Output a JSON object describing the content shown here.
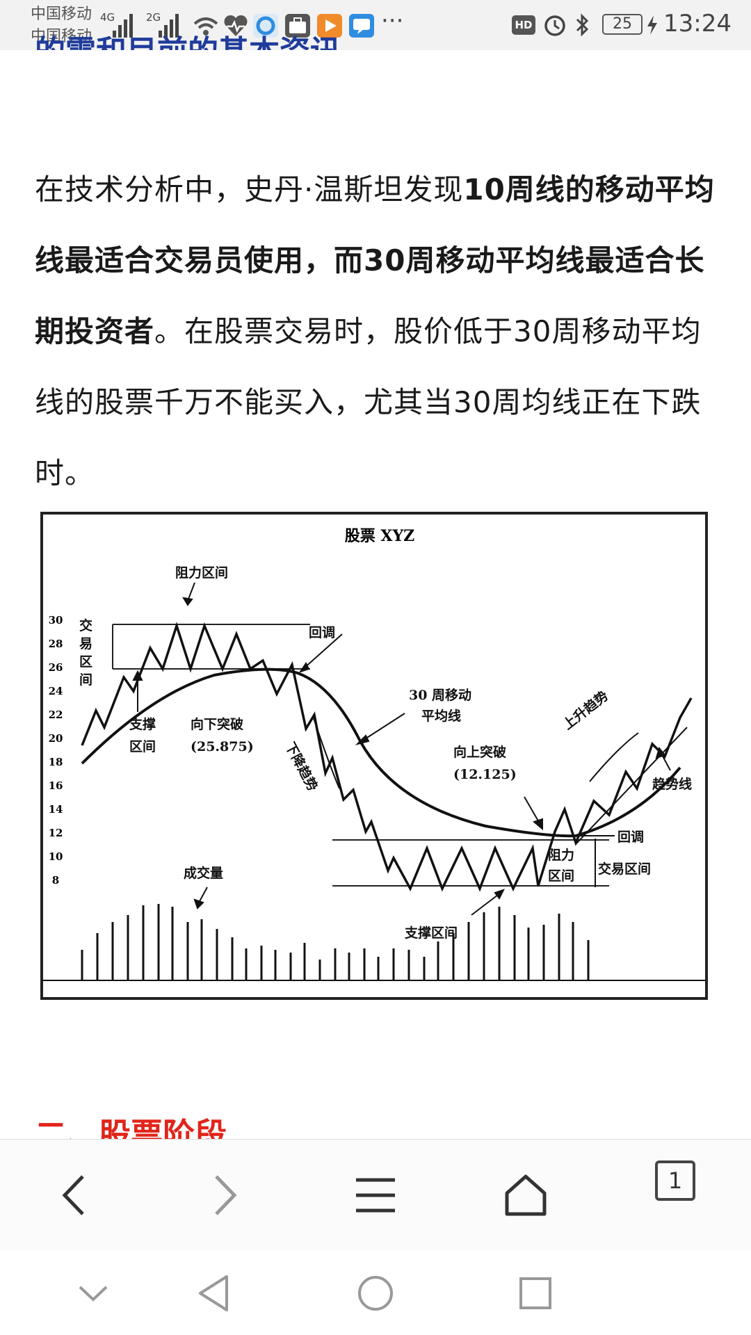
{
  "status_bar": {
    "carrier_1": "中国移动",
    "carrier_2": "中国移动",
    "signal_1": "4G",
    "signal_2": "2G",
    "more": "···",
    "hd": "HD",
    "battery": "25",
    "time": "13:24",
    "icons": [
      "wifi-icon",
      "health-icon",
      "browser-app-icon",
      "briefcase-icon",
      "video-app-icon",
      "message-app-icon",
      "alarm-icon",
      "bluetooth-icon",
      "charging-icon"
    ]
  },
  "article": {
    "prev_heading": "的需和目前的基本资讯。",
    "paragraph": {
      "part1": "在技术分析中，史丹·温斯坦发现",
      "bold1": "10周线的移动平均线最适合交易员使用，而30周移动平均线最适合长期投资者",
      "part2": "。在股票交易时，股价低于30周移动平均线的股票千万不能买入，尤其当30周均线正在下跌时。"
    },
    "next_heading": "二、股票阶段"
  },
  "figure": {
    "title": "股票 XYZ",
    "y_ticks": [
      "30",
      "28",
      "26",
      "24",
      "22",
      "20",
      "18",
      "16",
      "14",
      "12",
      "10",
      "8"
    ],
    "labels": {
      "resistance_top": "阻力区间",
      "pullback_top": "回调",
      "trading_zone_left": [
        "交",
        "易",
        "区",
        "间"
      ],
      "support_left": "支撑",
      "support_left2": "区间",
      "breakdown": "向下突破",
      "breakdown_value": "(25.875)",
      "downtrend": "下降趋势",
      "ma30": "30 周移动",
      "ma30_2": "平均线",
      "breakout": "向上突破",
      "breakout_value": "(12.125)",
      "uptrend": "上升趋势",
      "trendline": "趋势线",
      "pullback_right": "回调",
      "resistance_right": "阻力",
      "resistance_right2": "区间",
      "trading_zone_right": "交易区间",
      "support_bottom": "支撑区间",
      "volume": "成交量"
    }
  },
  "browser_bar": {
    "tab_count": "1",
    "buttons": [
      "back-icon",
      "forward-icon",
      "menu-icon",
      "home-icon",
      "tabs-icon"
    ]
  },
  "nav_bar": {
    "buttons": [
      "collapse-icon",
      "nav-back-icon",
      "nav-home-icon",
      "nav-recents-icon"
    ]
  }
}
